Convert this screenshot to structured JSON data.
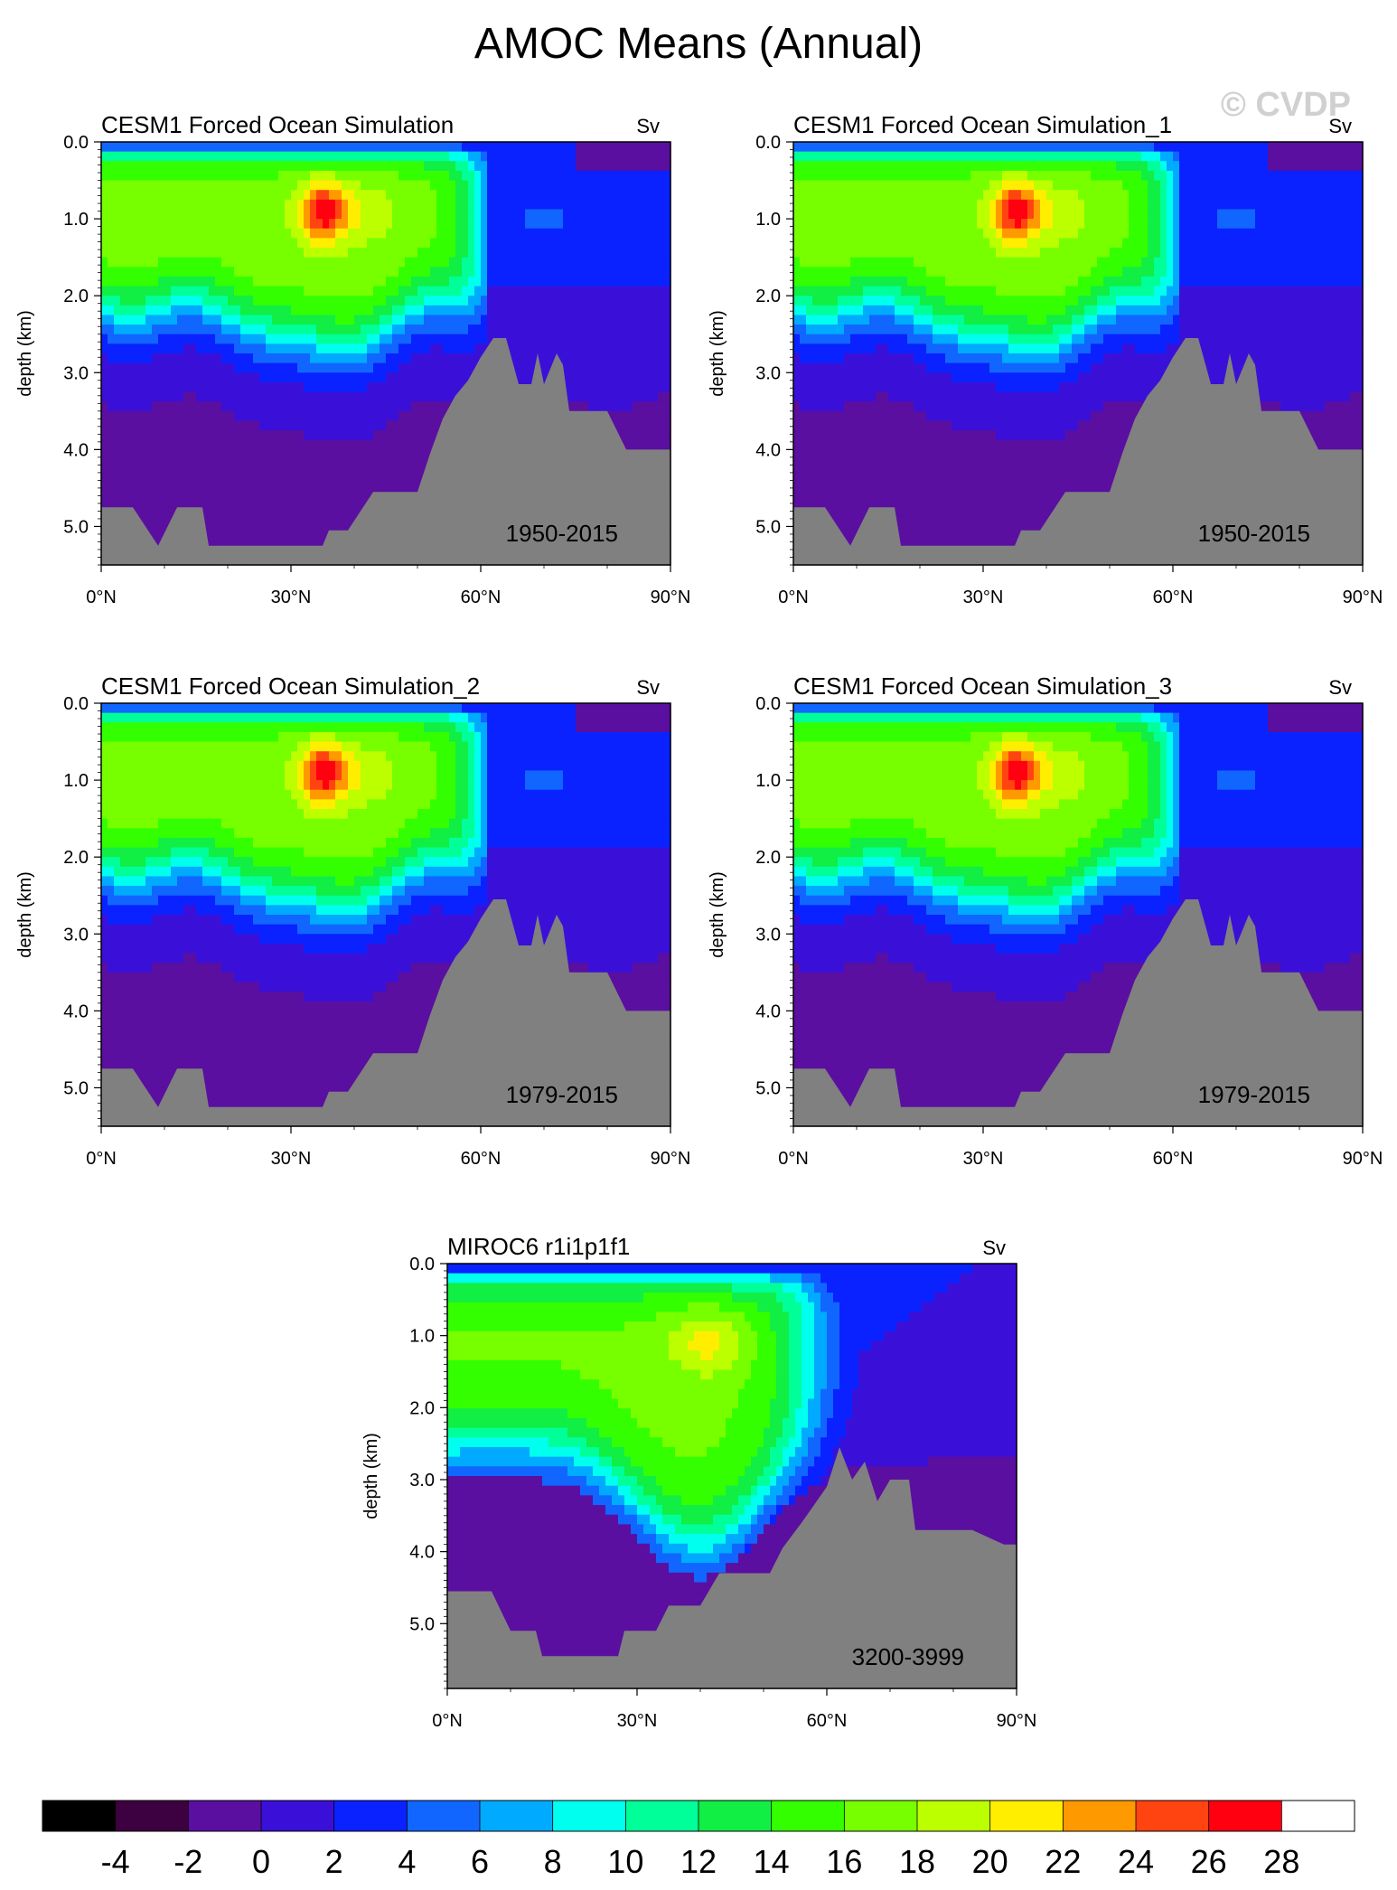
{
  "figure_title": "AMOC Means (Annual)",
  "watermark": "© CVDP",
  "units": "Sv",
  "y_axis_label": "depth (km)",
  "x_tick_labels": [
    "0°N",
    "30°N",
    "60°N",
    "90°N"
  ],
  "y_tick_labels": [
    "0.0",
    "1.0",
    "2.0",
    "3.0",
    "4.0",
    "5.0"
  ],
  "colorbar": {
    "levels": [
      -4,
      -2,
      0,
      2,
      4,
      6,
      8,
      10,
      12,
      14,
      16,
      18,
      20,
      22,
      24,
      26,
      28
    ],
    "colors": [
      "#000000",
      "#3d0040",
      "#5a0fa0",
      "#3a10d8",
      "#0a22ff",
      "#1166ff",
      "#00aaff",
      "#00ffee",
      "#00ff99",
      "#11ee44",
      "#33ff00",
      "#77ff00",
      "#bbff00",
      "#ffee00",
      "#ff9900",
      "#ff4411",
      "#ff0011",
      "#ffffff"
    ],
    "missing_color": "#808080"
  },
  "chart_data": [
    {
      "type": "contour",
      "title": "CESM1 Forced Ocean Simulation",
      "period": "1950-2015",
      "xlabel": "",
      "ylabel": "depth (km)",
      "xlim": [
        0,
        90
      ],
      "ylim": [
        5.5,
        0.0
      ],
      "max_overturning_sv": 26,
      "max_location": {
        "lat_deg": 35,
        "depth_km": 0.9
      },
      "bathymetry": [
        [
          0,
          4.75
        ],
        [
          5,
          4.75
        ],
        [
          9,
          5.25
        ],
        [
          12,
          4.75
        ],
        [
          16,
          4.75
        ],
        [
          17,
          5.25
        ],
        [
          35,
          5.25
        ],
        [
          36,
          5.05
        ],
        [
          39,
          5.05
        ],
        [
          43,
          4.55
        ],
        [
          50,
          4.55
        ],
        [
          52,
          4.05
        ],
        [
          54,
          3.6
        ],
        [
          56,
          3.3
        ],
        [
          58,
          3.1
        ],
        [
          60,
          2.8
        ],
        [
          62,
          2.55
        ],
        [
          64,
          2.55
        ],
        [
          66,
          3.15
        ],
        [
          68,
          3.15
        ],
        [
          69,
          2.75
        ],
        [
          70,
          3.15
        ],
        [
          72,
          2.75
        ],
        [
          73,
          2.9
        ],
        [
          74,
          3.5
        ],
        [
          80,
          3.5
        ],
        [
          83,
          4.0
        ],
        [
          90,
          4.0
        ]
      ]
    },
    {
      "type": "contour",
      "title": "CESM1 Forced Ocean Simulation_1",
      "period": "1950-2015",
      "xlabel": "",
      "ylabel": "depth (km)",
      "xlim": [
        0,
        90
      ],
      "ylim": [
        5.5,
        0.0
      ],
      "max_overturning_sv": 26,
      "max_location": {
        "lat_deg": 35,
        "depth_km": 0.9
      },
      "bathymetry": [
        [
          0,
          4.75
        ],
        [
          5,
          4.75
        ],
        [
          9,
          5.25
        ],
        [
          12,
          4.75
        ],
        [
          16,
          4.75
        ],
        [
          17,
          5.25
        ],
        [
          35,
          5.25
        ],
        [
          36,
          5.05
        ],
        [
          39,
          5.05
        ],
        [
          43,
          4.55
        ],
        [
          50,
          4.55
        ],
        [
          52,
          4.05
        ],
        [
          54,
          3.6
        ],
        [
          56,
          3.3
        ],
        [
          58,
          3.1
        ],
        [
          60,
          2.8
        ],
        [
          62,
          2.55
        ],
        [
          64,
          2.55
        ],
        [
          66,
          3.15
        ],
        [
          68,
          3.15
        ],
        [
          69,
          2.75
        ],
        [
          70,
          3.15
        ],
        [
          72,
          2.75
        ],
        [
          73,
          2.9
        ],
        [
          74,
          3.5
        ],
        [
          80,
          3.5
        ],
        [
          83,
          4.0
        ],
        [
          90,
          4.0
        ]
      ]
    },
    {
      "type": "contour",
      "title": "CESM1 Forced Ocean Simulation_2",
      "period": "1979-2015",
      "xlabel": "",
      "ylabel": "depth (km)",
      "xlim": [
        0,
        90
      ],
      "ylim": [
        5.5,
        0.0
      ],
      "max_overturning_sv": 26,
      "max_location": {
        "lat_deg": 35,
        "depth_km": 0.9
      },
      "bathymetry": [
        [
          0,
          4.75
        ],
        [
          5,
          4.75
        ],
        [
          9,
          5.25
        ],
        [
          12,
          4.75
        ],
        [
          16,
          4.75
        ],
        [
          17,
          5.25
        ],
        [
          35,
          5.25
        ],
        [
          36,
          5.05
        ],
        [
          39,
          5.05
        ],
        [
          43,
          4.55
        ],
        [
          50,
          4.55
        ],
        [
          52,
          4.05
        ],
        [
          54,
          3.6
        ],
        [
          56,
          3.3
        ],
        [
          58,
          3.1
        ],
        [
          60,
          2.8
        ],
        [
          62,
          2.55
        ],
        [
          64,
          2.55
        ],
        [
          66,
          3.15
        ],
        [
          68,
          3.15
        ],
        [
          69,
          2.75
        ],
        [
          70,
          3.15
        ],
        [
          72,
          2.75
        ],
        [
          73,
          2.9
        ],
        [
          74,
          3.5
        ],
        [
          80,
          3.5
        ],
        [
          83,
          4.0
        ],
        [
          90,
          4.0
        ]
      ]
    },
    {
      "type": "contour",
      "title": "CESM1 Forced Ocean Simulation_3",
      "period": "1979-2015",
      "xlabel": "",
      "ylabel": "depth (km)",
      "xlim": [
        0,
        90
      ],
      "ylim": [
        5.5,
        0.0
      ],
      "max_overturning_sv": 26,
      "max_location": {
        "lat_deg": 35,
        "depth_km": 0.9
      },
      "bathymetry": [
        [
          0,
          4.75
        ],
        [
          5,
          4.75
        ],
        [
          9,
          5.25
        ],
        [
          12,
          4.75
        ],
        [
          16,
          4.75
        ],
        [
          17,
          5.25
        ],
        [
          35,
          5.25
        ],
        [
          36,
          5.05
        ],
        [
          39,
          5.05
        ],
        [
          43,
          4.55
        ],
        [
          50,
          4.55
        ],
        [
          52,
          4.05
        ],
        [
          54,
          3.6
        ],
        [
          56,
          3.3
        ],
        [
          58,
          3.1
        ],
        [
          60,
          2.8
        ],
        [
          62,
          2.55
        ],
        [
          64,
          2.55
        ],
        [
          66,
          3.15
        ],
        [
          68,
          3.15
        ],
        [
          69,
          2.75
        ],
        [
          70,
          3.15
        ],
        [
          72,
          2.75
        ],
        [
          73,
          2.9
        ],
        [
          74,
          3.5
        ],
        [
          80,
          3.5
        ],
        [
          83,
          4.0
        ],
        [
          90,
          4.0
        ]
      ]
    },
    {
      "type": "contour",
      "title": "MIROC6 r1i1p1f1",
      "period": "3200-3999",
      "xlabel": "",
      "ylabel": "depth (km)",
      "xlim": [
        0,
        90
      ],
      "ylim": [
        5.9,
        0.0
      ],
      "max_overturning_sv": 20,
      "max_location": {
        "lat_deg": 41,
        "depth_km": 1.1
      },
      "bathymetry": [
        [
          0,
          4.55
        ],
        [
          7,
          4.55
        ],
        [
          10,
          5.1
        ],
        [
          14,
          5.1
        ],
        [
          15,
          5.45
        ],
        [
          27,
          5.45
        ],
        [
          28,
          5.1
        ],
        [
          33,
          5.1
        ],
        [
          35,
          4.75
        ],
        [
          40,
          4.75
        ],
        [
          43,
          4.3
        ],
        [
          51,
          4.3
        ],
        [
          53,
          3.95
        ],
        [
          56,
          3.6
        ],
        [
          58,
          3.35
        ],
        [
          60,
          3.1
        ],
        [
          62,
          2.55
        ],
        [
          64,
          3.0
        ],
        [
          66,
          2.75
        ],
        [
          68,
          3.3
        ],
        [
          70,
          3.0
        ],
        [
          73,
          3.0
        ],
        [
          74,
          3.7
        ],
        [
          83,
          3.7
        ],
        [
          88,
          3.9
        ],
        [
          90,
          3.9
        ]
      ]
    }
  ]
}
